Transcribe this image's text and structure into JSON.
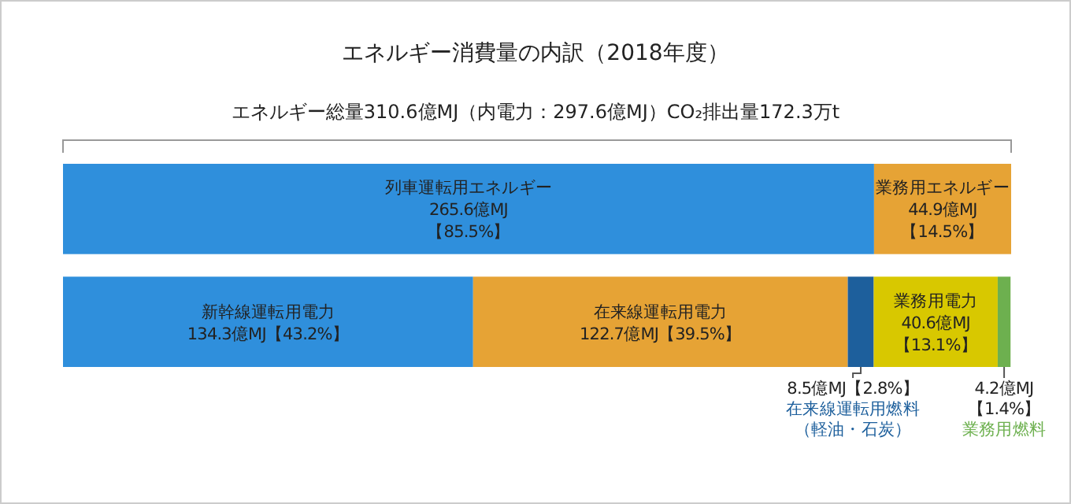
{
  "chart_data": {
    "type": "bar",
    "orientation": "horizontal",
    "stacked": true,
    "title": "エネルギー消費量の内訳（2018年度）",
    "subtitle": "エネルギー総量310.6億MJ（内電力：297.6億MJ）CO₂排出量172.3万t",
    "categories": [
      null,
      null
    ],
    "series": [
      {
        "name": "列車運転用エネルギー",
        "color": "#2f8fdc",
        "values": [
          265.6,
          null
        ],
        "value_labels": [
          "265.6億MJ\n【85.5%】",
          null
        ]
      },
      {
        "name": "業務用エネルギー",
        "color": "#e6a335",
        "values": [
          44.9,
          null
        ],
        "value_labels": [
          "44.9億MJ\n【14.5%】",
          null
        ]
      },
      {
        "name": "新幹線運転用電力",
        "color": "#2f8fdc",
        "values": [
          null,
          134.3
        ],
        "value_labels": [
          null,
          "134.3億MJ【43.2%】"
        ]
      },
      {
        "name": "在来線運転用電力",
        "color": "#e6a335",
        "values": [
          null,
          122.7
        ],
        "value_labels": [
          null,
          "122.7億MJ【39.5%】"
        ]
      },
      {
        "name": "在来線運転用燃料（軽油・石炭）",
        "color": "#1d5f9c",
        "values": [
          null,
          8.5
        ],
        "value_labels": [
          null,
          "8.5億MJ【2.8%】"
        ]
      },
      {
        "name": "業務用電力",
        "color": "#d8c800",
        "values": [
          null,
          40.6
        ],
        "value_labels": [
          null,
          "40.6億MJ\n【13.1%】"
        ]
      },
      {
        "name": "業務用燃料",
        "color": "#6db04f",
        "values": [
          null,
          4.2
        ],
        "value_labels": [
          null,
          "4.2億MJ\n【1.4%】"
        ]
      }
    ]
  }
}
